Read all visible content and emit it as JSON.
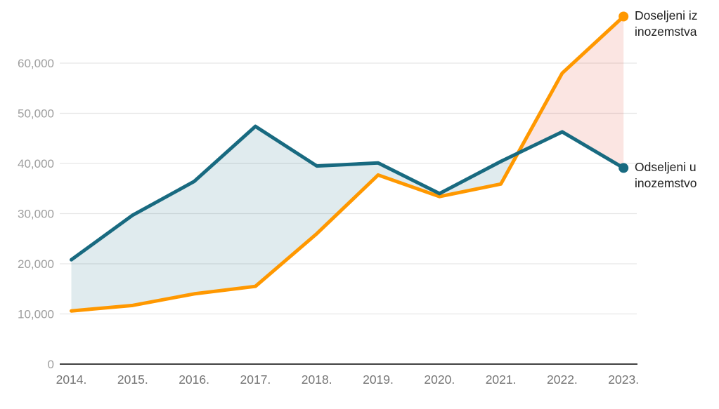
{
  "chart_data": {
    "type": "line",
    "categories": [
      "2014.",
      "2015.",
      "2016.",
      "2017.",
      "2018.",
      "2019.",
      "2020.",
      "2021.",
      "2022.",
      "2023."
    ],
    "series": [
      {
        "id": "doseljeni",
        "name": "Doseljeni iz inozemstva",
        "color": "#FF9800",
        "values": [
          10600,
          11700,
          14000,
          15500,
          26000,
          37700,
          33400,
          35900,
          58000,
          69300
        ]
      },
      {
        "id": "odseljeni",
        "name": "Odseljeni u inozemstvo",
        "color": "#186A80",
        "values": [
          20800,
          29700,
          36400,
          47400,
          39500,
          40100,
          34000,
          40400,
          46300,
          39100
        ]
      }
    ],
    "ylim": [
      0,
      70000
    ],
    "yticks": [
      {
        "value": 0,
        "label": "0"
      },
      {
        "value": 10000,
        "label": "10,000"
      },
      {
        "value": 20000,
        "label": "20,000"
      },
      {
        "value": 30000,
        "label": "30,000"
      },
      {
        "value": 40000,
        "label": "40,000"
      },
      {
        "value": 50000,
        "label": "50,000"
      },
      {
        "value": 60000,
        "label": "60,000"
      }
    ],
    "grid": "horizontal-only",
    "legend_position": "end-of-line-labels",
    "area_between_series": {
      "odseljeni_above_fill": "#186A8022",
      "doseljeni_above_fill": "#E6503C26"
    }
  },
  "end_labels": {
    "doseljeni": {
      "line1": "Doseljeni iz",
      "line2": "inozemstva"
    },
    "odseljeni": {
      "line1": "Odseljeni u",
      "line2": "inozemstvo"
    }
  },
  "axis_style": {
    "y_label_color": "#9E9E9E",
    "x_label_color": "#757575",
    "gridline_color": "#E6E6E6",
    "axis_line_color": "#424242",
    "end_label_color": "#212121"
  }
}
